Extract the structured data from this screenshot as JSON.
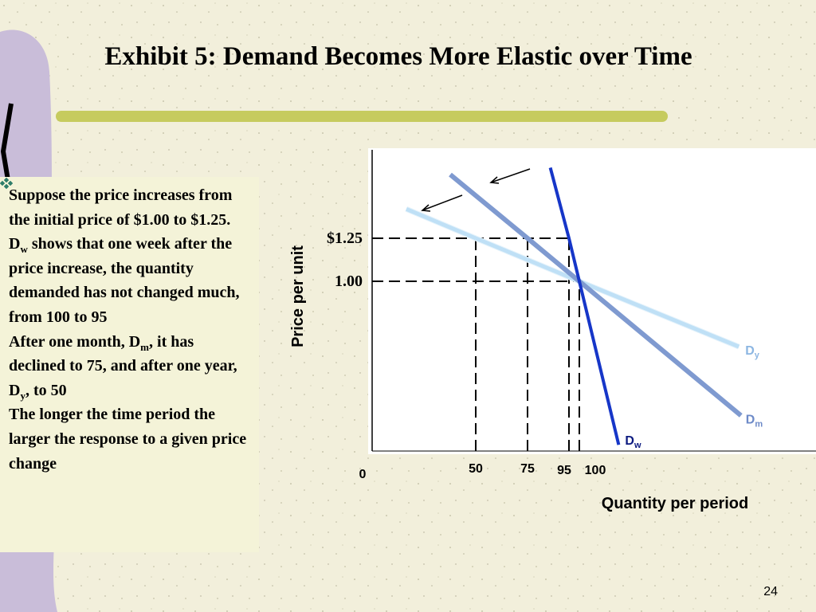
{
  "title": "Exhibit 5: Demand Becomes More Elastic over Time",
  "bullets": [
    [
      "Suppose the price increases from the initial price of $1.00 to $1.25."
    ],
    [
      "D",
      {
        "sub": "w"
      },
      " shows that one week after the price increase, the quantity demanded has not changed much, from 100 to 95"
    ],
    [
      "After one month, D",
      {
        "sub": "m"
      },
      ", it has declined to 75, and after one year, D",
      {
        "sub": "y"
      },
      ", to 50"
    ],
    [
      "The longer the time period the larger the response to a given price change"
    ]
  ],
  "page_number": "24",
  "chart_data": {
    "type": "line",
    "y_label": "Price per unit",
    "x_label": "Quantity per  period",
    "xlim": [
      0,
      214
    ],
    "ylim": [
      0,
      1.76
    ],
    "xticks": [
      0,
      50,
      75,
      95,
      100
    ],
    "yticks": [
      {
        "value": 1.25,
        "label": "$1.25"
      },
      {
        "value": 1,
        "label": "1.00"
      }
    ],
    "series": [
      {
        "name": "D",
        "name_sub": "y",
        "color": "#bfe0f6",
        "label_color": "#8cb6e2",
        "x": [
          16.5,
          50,
          100,
          177
        ],
        "values": [
          1.42,
          1.25,
          1.0,
          0.62
        ]
      },
      {
        "name": "D",
        "name_sub": "m",
        "color": "#7f9ad0",
        "label_color": "#6d8ac8",
        "x": [
          37.7,
          75,
          100,
          178
        ],
        "values": [
          1.62,
          1.25,
          1.0,
          0.22
        ]
      },
      {
        "name": "D",
        "name_sub": "w",
        "color": "#1636c8",
        "label_color": "#0c1a80",
        "x": [
          86,
          95,
          100,
          119
        ],
        "values": [
          1.66,
          1.25,
          1.0,
          0.05
        ]
      }
    ],
    "guides": [
      {
        "x": 50,
        "y": 1.25
      },
      {
        "x": 75,
        "y": 1.25
      },
      {
        "x": 95,
        "y": 1.25
      },
      {
        "x": 100,
        "y": 1.0
      }
    ]
  }
}
